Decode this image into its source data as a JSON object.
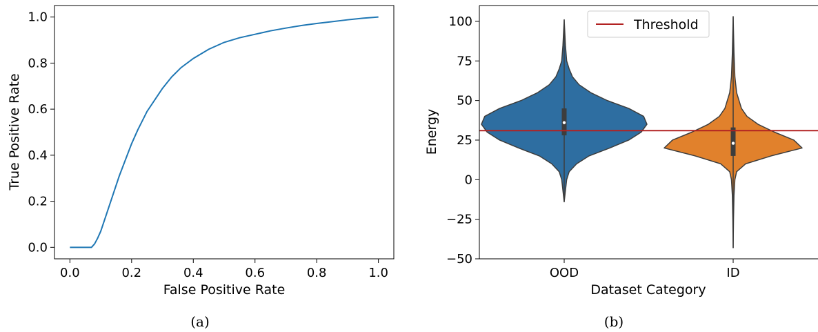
{
  "colors": {
    "roc_line": "#1f77b4",
    "ood_violin": "#2e6ea1",
    "id_violin": "#e1812c",
    "threshold": "#b22222",
    "violin_edge": "#3d3d3d",
    "axis": "#000000"
  },
  "chart_data": [
    {
      "type": "line",
      "caption": "(a)",
      "xlabel": "False Positive Rate",
      "ylabel": "True Positive Rate",
      "xlim": [
        -0.05,
        1.05
      ],
      "ylim": [
        -0.05,
        1.05
      ],
      "xticks": [
        0.0,
        0.2,
        0.4,
        0.6,
        0.8,
        1.0
      ],
      "xtick_labels": [
        "0.0",
        "0.2",
        "0.4",
        "0.6",
        "0.8",
        "1.0"
      ],
      "yticks": [
        0.0,
        0.2,
        0.4,
        0.6,
        0.8,
        1.0
      ],
      "ytick_labels": [
        "0.0",
        "0.2",
        "0.4",
        "0.6",
        "0.8",
        "1.0"
      ],
      "grid": false,
      "series": [
        {
          "x": [
            0.0,
            0.05,
            0.07,
            0.08,
            0.09,
            0.1,
            0.12,
            0.14,
            0.16,
            0.18,
            0.2,
            0.22,
            0.25,
            0.28,
            0.3,
            0.33,
            0.36,
            0.4,
            0.45,
            0.5,
            0.55,
            0.6,
            0.65,
            0.7,
            0.75,
            0.8,
            0.85,
            0.9,
            0.95,
            1.0
          ],
          "y": [
            0.0,
            0.0,
            0.0,
            0.015,
            0.04,
            0.07,
            0.15,
            0.23,
            0.31,
            0.38,
            0.45,
            0.51,
            0.59,
            0.65,
            0.69,
            0.74,
            0.78,
            0.82,
            0.86,
            0.89,
            0.91,
            0.925,
            0.94,
            0.952,
            0.963,
            0.972,
            0.98,
            0.988,
            0.995,
            1.0
          ]
        }
      ]
    },
    {
      "type": "violin",
      "caption": "(b)",
      "xlabel": "Dataset Category",
      "ylabel": "Energy",
      "categories": [
        "OOD",
        "ID"
      ],
      "ylim": [
        -50,
        110
      ],
      "yticks": [
        -50,
        -25,
        0,
        25,
        50,
        75,
        100
      ],
      "ytick_labels": [
        "−50",
        "−25",
        "0",
        "25",
        "50",
        "75",
        "100"
      ],
      "legend": {
        "label": "Threshold",
        "position": "top-center"
      },
      "threshold": 31,
      "series": [
        {
          "category": "OOD",
          "min": -14,
          "max": 101,
          "q1": 28,
          "median": 36,
          "q3": 45,
          "density_profile": [
            [
              -14,
              0.0
            ],
            [
              0,
              0.03
            ],
            [
              5,
              0.06
            ],
            [
              10,
              0.15
            ],
            [
              15,
              0.3
            ],
            [
              20,
              0.55
            ],
            [
              25,
              0.78
            ],
            [
              30,
              0.93
            ],
            [
              35,
              1.0
            ],
            [
              40,
              0.96
            ],
            [
              45,
              0.78
            ],
            [
              50,
              0.52
            ],
            [
              55,
              0.32
            ],
            [
              60,
              0.18
            ],
            [
              65,
              0.1
            ],
            [
              70,
              0.06
            ],
            [
              75,
              0.03
            ],
            [
              85,
              0.015
            ],
            [
              101,
              0.0
            ]
          ]
        },
        {
          "category": "ID",
          "min": -43,
          "max": 103,
          "q1": 15,
          "median": 23,
          "q3": 33,
          "density_profile": [
            [
              -43,
              0.0
            ],
            [
              -25,
              0.005
            ],
            [
              -10,
              0.012
            ],
            [
              0,
              0.025
            ],
            [
              5,
              0.05
            ],
            [
              10,
              0.18
            ],
            [
              15,
              0.55
            ],
            [
              20,
              1.0
            ],
            [
              25,
              0.88
            ],
            [
              30,
              0.6
            ],
            [
              35,
              0.36
            ],
            [
              40,
              0.2
            ],
            [
              45,
              0.12
            ],
            [
              55,
              0.05
            ],
            [
              65,
              0.025
            ],
            [
              80,
              0.012
            ],
            [
              103,
              0.0
            ]
          ]
        }
      ]
    }
  ]
}
